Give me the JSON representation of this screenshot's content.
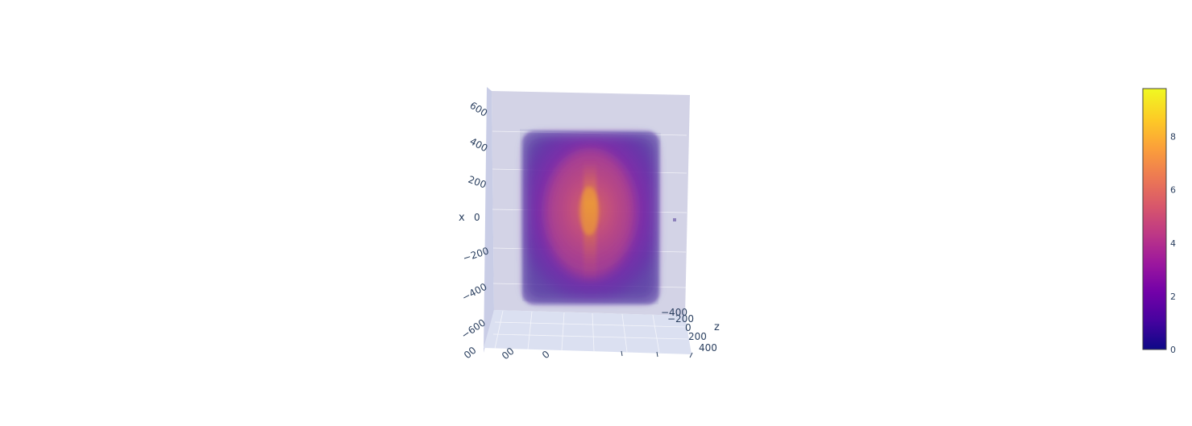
{
  "chart_data": {
    "type": "volume",
    "title": "",
    "axes": {
      "x": {
        "title": "x",
        "ticks": [
          "600",
          "400",
          "200",
          "0",
          "−200",
          "−400",
          "−600"
        ],
        "range": [
          -700,
          700
        ]
      },
      "z": {
        "title": "z",
        "ticks": [
          "−400",
          "−200",
          "0",
          "200",
          "400"
        ],
        "range": [
          -500,
          500
        ]
      },
      "y": {
        "title": "",
        "ticks": []
      }
    },
    "colorbar": {
      "colorscale": "plasma",
      "range": [
        0,
        9.8
      ],
      "ticks": [
        "8",
        "6",
        "4",
        "2",
        "0"
      ],
      "tick_values": [
        8,
        6,
        4,
        2,
        0
      ]
    },
    "volume": {
      "description_values": {
        "max_intensity": 7.5,
        "min_visible_intensity": 1
      }
    },
    "colors": {
      "scene_back_wall": "#d3d3e6",
      "scene_side_wall": "#c9cde6",
      "scene_floor": "#dbe0f1",
      "grid": "#ffffff",
      "text": "#2a3f5f"
    }
  }
}
